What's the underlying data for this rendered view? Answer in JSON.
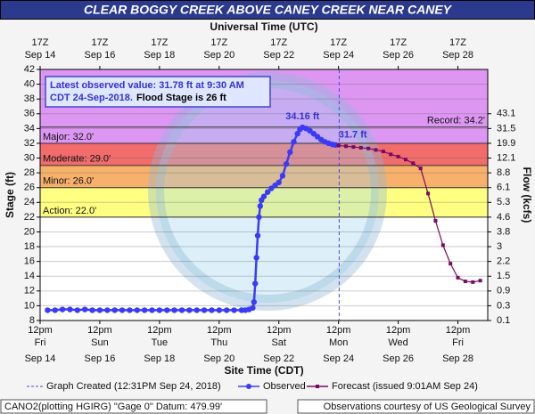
{
  "chart_data": {
    "type": "hydrograph",
    "title": "CLEAR BOGGY CREEK ABOVE CANEY CREEK NEAR CANEY",
    "x2_label": "Universal Time (UTC)",
    "x_label": "Site Time (CDT)",
    "y_label": "Stage (ft)",
    "y2_label": "Flow (kcfs)",
    "xlim": [
      "09-14T12:00",
      "09-29T12:00"
    ],
    "xticks": [
      {
        "value": "09-14T12:00",
        "label": "12pm",
        "day": "Fri",
        "date": "Sep 14"
      },
      {
        "value": "09-16T12:00",
        "label": "12pm",
        "day": "Sun",
        "date": "Sep 16"
      },
      {
        "value": "09-18T12:00",
        "label": "12pm",
        "day": "Tue",
        "date": "Sep 18"
      },
      {
        "value": "09-20T12:00",
        "label": "12pm",
        "day": "Thu",
        "date": "Sep 20"
      },
      {
        "value": "09-22T12:00",
        "label": "12pm",
        "day": "Sat",
        "date": "Sep 22"
      },
      {
        "value": "09-24T12:00",
        "label": "12pm",
        "day": "Mon",
        "date": "Sep 24"
      },
      {
        "value": "09-26T12:00",
        "label": "12pm",
        "day": "Wed",
        "date": "Sep 26"
      },
      {
        "value": "09-28T12:00",
        "label": "12pm",
        "day": "Fri",
        "date": "Sep 28"
      }
    ],
    "x2ticks": [
      {
        "value": "09-14T12:00",
        "label": "17Z",
        "date": "Sep 14"
      },
      {
        "value": "09-16T12:00",
        "label": "17Z",
        "date": "Sep 16"
      },
      {
        "value": "09-18T12:00",
        "label": "17Z",
        "date": "Sep 18"
      },
      {
        "value": "09-20T12:00",
        "label": "17Z",
        "date": "Sep 20"
      },
      {
        "value": "09-22T12:00",
        "label": "17Z",
        "date": "Sep 22"
      },
      {
        "value": "09-24T12:00",
        "label": "17Z",
        "date": "Sep 24"
      },
      {
        "value": "09-26T12:00",
        "label": "17Z",
        "date": "Sep 26"
      },
      {
        "value": "09-28T12:00",
        "label": "17Z",
        "date": "Sep 28"
      }
    ],
    "ylim": [
      8,
      42
    ],
    "yticks": [
      8,
      10,
      12,
      14,
      16,
      18,
      20,
      22,
      24,
      26,
      28,
      30,
      32,
      34,
      36,
      38,
      40,
      42
    ],
    "y2ticks": [
      43.1,
      31.5,
      19.9,
      12.1,
      8.8,
      6.1,
      5.3,
      4.6,
      3.8,
      3.0,
      2.2,
      1.5,
      0.9,
      0.3,
      0.1
    ],
    "y2tick_stages": [
      36,
      34,
      32,
      30,
      28,
      26,
      24,
      22,
      20,
      18,
      16,
      14,
      12,
      10,
      8
    ],
    "grid": true,
    "flood_categories": [
      {
        "label": "Record: 34.2'",
        "stage": 34.2,
        "color": null,
        "side": "right"
      },
      {
        "label": "Major: 32.0'",
        "stage": 32.0,
        "color": "#d98cf2",
        "side": "left"
      },
      {
        "label": "Moderate: 29.0'",
        "stage": 29.0,
        "color": "#f25c5c",
        "side": "left"
      },
      {
        "label": "Minor: 26.0'",
        "stage": 26.0,
        "color": "#f7a85a",
        "side": "left"
      },
      {
        "label": "Action: 22.0'",
        "stage": 22.0,
        "color": "#ffff73",
        "side": "left"
      }
    ],
    "annotation": {
      "lines": [
        "Latest observed value: 31.78 ft at 9:30 AM",
        "CDT 24-Sep-2018."
      ],
      "flood_note": "Flood Stage is 26 ft"
    },
    "graph_created": {
      "time": "09-24T12:31",
      "label": "Graph Created (12:31PM Sep 24, 2018)"
    },
    "series": [
      {
        "name": "Observed",
        "color": "#3b3bf5",
        "marker": "circle",
        "x": [
          "09-14T18:00",
          "09-15T00:00",
          "09-15T06:00",
          "09-15T12:00",
          "09-15T18:00",
          "09-16T00:00",
          "09-16T06:00",
          "09-16T12:00",
          "09-16T18:00",
          "09-17T00:00",
          "09-17T06:00",
          "09-17T12:00",
          "09-17T18:00",
          "09-18T00:00",
          "09-18T06:00",
          "09-18T12:00",
          "09-18T18:00",
          "09-19T00:00",
          "09-19T06:00",
          "09-19T12:00",
          "09-19T18:00",
          "09-20T00:00",
          "09-20T06:00",
          "09-20T12:00",
          "09-20T18:00",
          "09-21T00:00",
          "09-21T06:00",
          "09-21T09:00",
          "09-21T12:00",
          "09-21T15:00",
          "09-21T16:00",
          "09-21T17:00",
          "09-21T18:00",
          "09-21T19:00",
          "09-21T20:00",
          "09-21T21:00",
          "09-21T22:00",
          "09-22T00:00",
          "09-22T03:00",
          "09-22T06:00",
          "09-22T09:00",
          "09-22T12:00",
          "09-22T15:00",
          "09-22T18:00",
          "09-22T21:00",
          "09-23T00:00",
          "09-23T03:00",
          "09-23T05:00",
          "09-23T07:00",
          "09-23T10:00",
          "09-23T13:00",
          "09-23T16:00",
          "09-23T19:00",
          "09-23T22:00",
          "09-24T01:00",
          "09-24T04:00",
          "09-24T07:00",
          "09-24T09:30"
        ],
        "values": [
          9.4,
          9.4,
          9.5,
          9.5,
          9.4,
          9.5,
          9.4,
          9.4,
          9.4,
          9.4,
          9.4,
          9.4,
          9.4,
          9.4,
          9.4,
          9.4,
          9.4,
          9.4,
          9.4,
          9.4,
          9.4,
          9.4,
          9.4,
          9.4,
          9.4,
          9.4,
          9.4,
          9.4,
          9.5,
          9.7,
          10.5,
          13.0,
          16.5,
          19.5,
          22.0,
          23.5,
          24.3,
          24.8,
          25.4,
          25.9,
          26.3,
          26.7,
          27.6,
          29.2,
          30.8,
          32.2,
          33.3,
          33.9,
          34.16,
          34.0,
          33.7,
          33.3,
          32.9,
          32.5,
          32.2,
          32.0,
          31.85,
          31.78
        ],
        "value_labels": [
          null,
          null,
          null,
          null,
          null,
          null,
          null,
          null,
          null,
          null,
          null,
          null,
          null,
          null,
          null,
          null,
          null,
          null,
          null,
          null,
          null,
          null,
          null,
          null,
          null,
          null,
          null,
          null,
          null,
          null,
          null,
          null,
          null,
          null,
          null,
          null,
          null,
          null,
          null,
          null,
          null,
          null,
          null,
          null,
          null,
          null,
          null,
          null,
          "34.16 ft",
          null,
          null,
          null,
          null,
          null,
          null,
          null,
          null,
          null
        ]
      },
      {
        "name": "Forecast (issued 9:01AM Sep 24)",
        "color": "#7a0a62",
        "marker": "square",
        "x": [
          "09-24T12:00",
          "09-24T18:00",
          "09-25T00:00",
          "09-25T06:00",
          "09-25T12:00",
          "09-25T18:00",
          "09-26T00:00",
          "09-26T06:00",
          "09-26T12:00",
          "09-26T18:00",
          "09-27T00:00",
          "09-27T06:00",
          "09-27T12:00",
          "09-27T18:00",
          "09-28T00:00",
          "09-28T06:00",
          "09-28T12:00",
          "09-28T18:00",
          "09-29T00:00",
          "09-29T06:00"
        ],
        "values": [
          31.7,
          31.6,
          31.5,
          31.4,
          31.3,
          31.1,
          30.9,
          30.5,
          30.2,
          29.8,
          29.3,
          28.6,
          25.2,
          21.5,
          18.2,
          15.7,
          13.8,
          13.3,
          13.2,
          13.4
        ],
        "value_labels": [
          "31.7 ft",
          null,
          null,
          null,
          null,
          null,
          null,
          null,
          null,
          null,
          null,
          null,
          null,
          null,
          null,
          null,
          null,
          null,
          null,
          null
        ]
      }
    ],
    "footer_left": "CANO2(plotting HGIRG) \"Gage 0\" Datum: 479.99'",
    "footer_right": "Observations courtesy of US Geological Survey"
  }
}
